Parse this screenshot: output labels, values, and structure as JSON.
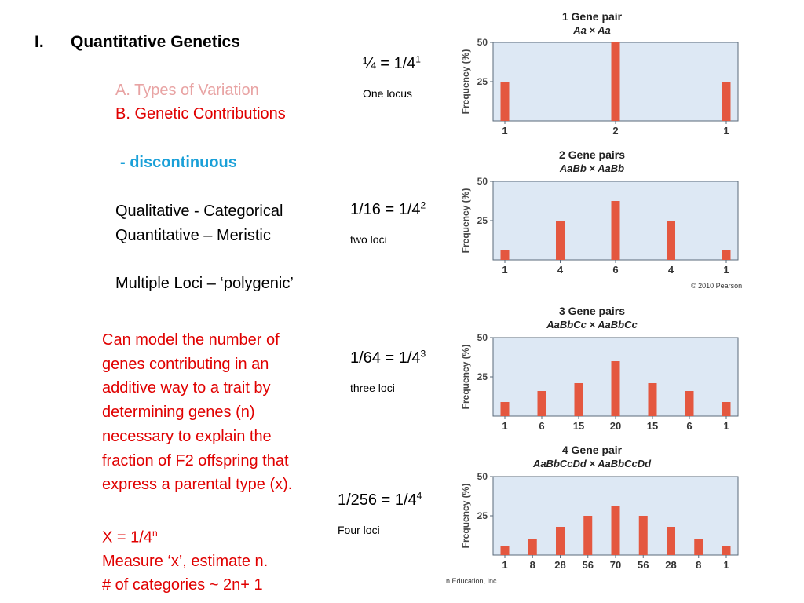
{
  "slide": {
    "heading_num": "I.",
    "heading_text": "Quantitative Genetics",
    "sub_a": "A.  Types of Variation",
    "sub_b": "B. Genetic Contributions",
    "discontinuous": "- discontinuous",
    "qualitative": "Qualitative - Categorical",
    "quantitative": "Quantitative – Meristic",
    "multiple_loci": "Multiple Loci – ‘polygenic’",
    "model_lines": [
      "Can model the number of",
      "genes contributing in an",
      "additive way to a trait by",
      "determining genes (n)",
      "necessary to explain the",
      "fraction of F2 offspring that",
      "express a parental type  (x)."
    ],
    "formula_base": "X = 1/4",
    "formula_exp": "n",
    "measure": "Measure ‘x’, estimate n.",
    "categories_rule": "# of categories ~ 2n+ 1"
  },
  "fractions": [
    {
      "base": "¼ = 1/4",
      "exp": "1",
      "loci": "One locus"
    },
    {
      "base": "1/16 = 1/4",
      "exp": "2",
      "loci": "two loci"
    },
    {
      "base": "1/64 = 1/4",
      "exp": "3",
      "loci": "three loci"
    },
    {
      "base": "1/256 = 1/4",
      "exp": "4",
      "loci": "Four loci"
    }
  ],
  "credits": {
    "pearson": "© 2010 Pearson",
    "education": "n Education, Inc."
  },
  "colors": {
    "bar": "#e4573f",
    "plot_bg": "#dde8f4",
    "plot_border": "#5a6a7a",
    "red_text": "#e00000",
    "blue_text": "#1aa0d8",
    "pink_text": "#e8a3a3"
  },
  "chart_data": [
    {
      "type": "bar",
      "title": "1 Gene pair",
      "subtitle": "Aa × Aa",
      "ylabel": "Frequency (%)",
      "ylim": [
        0,
        50
      ],
      "yticks": [
        25,
        50
      ],
      "categories": [
        "1",
        "2",
        "1"
      ],
      "values": [
        25,
        50,
        25
      ]
    },
    {
      "type": "bar",
      "title": "2 Gene pairs",
      "subtitle": "AaBb × AaBb",
      "ylabel": "Frequency (%)",
      "ylim": [
        0,
        50
      ],
      "yticks": [
        25,
        50
      ],
      "categories": [
        "1",
        "4",
        "6",
        "4",
        "1"
      ],
      "values": [
        6.25,
        25,
        37.5,
        25,
        6.25
      ]
    },
    {
      "type": "bar",
      "title": "3 Gene pairs",
      "subtitle": "AaBbCc × AaBbCc",
      "ylabel": "Frequency (%)",
      "ylim": [
        0,
        50
      ],
      "yticks": [
        25,
        50
      ],
      "categories": [
        "1",
        "6",
        "15",
        "20",
        "15",
        "6",
        "1"
      ],
      "values": [
        9,
        16,
        21,
        35,
        21,
        16,
        9
      ]
    },
    {
      "type": "bar",
      "title": "4 Gene pair",
      "subtitle": "AaBbCcDd × AaBbCcDd",
      "ylabel": "Frequency (%)",
      "ylim": [
        0,
        50
      ],
      "yticks": [
        25,
        50
      ],
      "categories": [
        "1",
        "8",
        "28",
        "56",
        "70",
        "56",
        "28",
        "8",
        "1"
      ],
      "values": [
        6,
        10,
        18,
        25,
        31,
        25,
        18,
        10,
        6
      ]
    }
  ]
}
